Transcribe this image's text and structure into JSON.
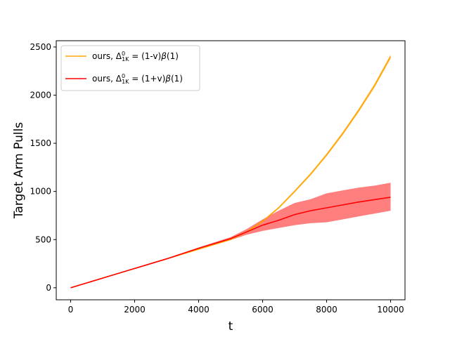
{
  "chart_data": {
    "type": "line",
    "xlabel": "t",
    "ylabel": "Target Arm Pulls",
    "xlim": [
      -450,
      10450
    ],
    "ylim": [
      -125,
      2565
    ],
    "xticks": [
      0,
      2000,
      4000,
      6000,
      8000,
      10000
    ],
    "yticks": [
      0,
      500,
      1000,
      1500,
      2000,
      2500
    ],
    "grid": false,
    "legend_position": "upper-left",
    "x": [
      0,
      1000,
      2000,
      3000,
      4000,
      5000,
      5500,
      6000,
      6500,
      7000,
      7500,
      8000,
      8500,
      9000,
      9500,
      10000
    ],
    "series": [
      {
        "name": "ours, Δ⁰₁K = (1-v)β(1)",
        "legend": {
          "prefix": "ours, ",
          "delta": "Δ",
          "sup": "0",
          "sub": "1K",
          "mid": " = (1-v)",
          "beta": "β",
          "suffix": "(1)"
        },
        "color": "#FFA500",
        "band_color": "#FFA500",
        "values": [
          0,
          100,
          200,
          300,
          400,
          500,
          580,
          690,
          830,
          1000,
          1180,
          1380,
          1600,
          1840,
          2100,
          2400
        ],
        "lower": [
          0,
          99,
          198,
          297,
          396,
          495,
          574,
          682,
          820,
          988,
          1166,
          1364,
          1582,
          1820,
          2078,
          2375
        ],
        "upper": [
          0,
          101,
          202,
          303,
          404,
          505,
          586,
          698,
          840,
          1012,
          1194,
          1396,
          1618,
          1860,
          2122,
          2425
        ]
      },
      {
        "name": "ours, Δ⁰₁K = (1+v)β(1)",
        "legend": {
          "prefix": "ours, ",
          "delta": "Δ",
          "sup": "0",
          "sub": "1K",
          "mid": " = (1+v)",
          "beta": "β",
          "suffix": "(1)"
        },
        "color": "#FF0000",
        "band_color": "#FF0000",
        "values": [
          0,
          100,
          200,
          300,
          410,
          510,
          580,
          650,
          700,
          760,
          800,
          830,
          860,
          890,
          915,
          940
        ],
        "lower": [
          0,
          99,
          197,
          295,
          402,
          495,
          550,
          590,
          620,
          650,
          670,
          680,
          710,
          740,
          770,
          800
        ],
        "upper": [
          0,
          101,
          203,
          305,
          418,
          525,
          610,
          710,
          800,
          880,
          920,
          980,
          1010,
          1040,
          1060,
          1090
        ]
      }
    ]
  }
}
